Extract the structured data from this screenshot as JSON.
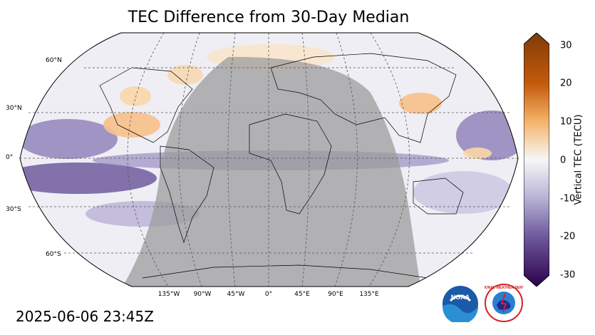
{
  "title": "TEC Difference from 30-Day Median",
  "timestamp": "2025-06-06 23:45Z",
  "map": {
    "projection": "Robinson",
    "variable": "TEC difference",
    "lat_labels": [
      "60°N",
      "30°N",
      "0°",
      "30°S",
      "60°S"
    ],
    "lon_labels": [
      "135°W",
      "90°W",
      "45°W",
      "0°",
      "45°E",
      "90°E",
      "135°E"
    ],
    "gridlines": true,
    "night_shading": "Gray overlay on the sunlit/day side spanning roughly 90°W to 60°E"
  },
  "colorbar": {
    "label": "Vertical TEC (TECU)",
    "ticks": [
      "30",
      "20",
      "10",
      "0",
      "-10",
      "-20",
      "-30"
    ],
    "min": -30,
    "max": 30,
    "colors": {
      "high": "#7f3b08",
      "mid_high": "#e08214",
      "zero": "#f7f7f7",
      "mid_low": "#8073ac",
      "low": "#2d004b"
    }
  },
  "logos": {
    "noaa_text": "NOAA",
    "nws_text": "NATIONAL WEATHER SERVICE"
  }
}
